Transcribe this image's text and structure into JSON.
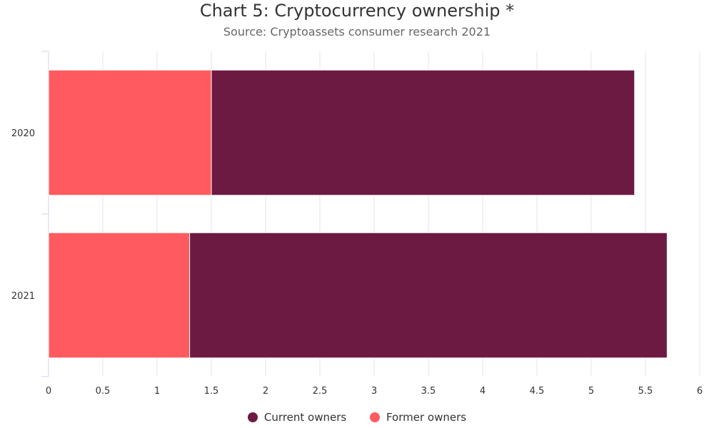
{
  "chart_data": {
    "type": "bar",
    "orientation": "horizontal",
    "stacked": true,
    "title": "Chart 5: Cryptocurrency ownership *",
    "subtitle": "Source: Cryptoassets consumer research 2021",
    "categories": [
      "2020",
      "2021"
    ],
    "series": [
      {
        "name": "Former owners",
        "values": [
          1.5,
          1.3
        ],
        "color": "#ff5a5f"
      },
      {
        "name": "Current owners",
        "values": [
          3.9,
          4.4
        ],
        "color": "#6d1a43"
      }
    ],
    "xlim": [
      0,
      6
    ],
    "xticks": [
      "0",
      "0.5",
      "1",
      "1.5",
      "2",
      "2.5",
      "3",
      "3.5",
      "4",
      "4.5",
      "5",
      "5.5",
      "6"
    ],
    "grid": true,
    "legend_position": "bottom",
    "legend": [
      {
        "label": "Current owners",
        "color": "#6d1a43"
      },
      {
        "label": "Former owners",
        "color": "#ff5a5f"
      }
    ]
  }
}
